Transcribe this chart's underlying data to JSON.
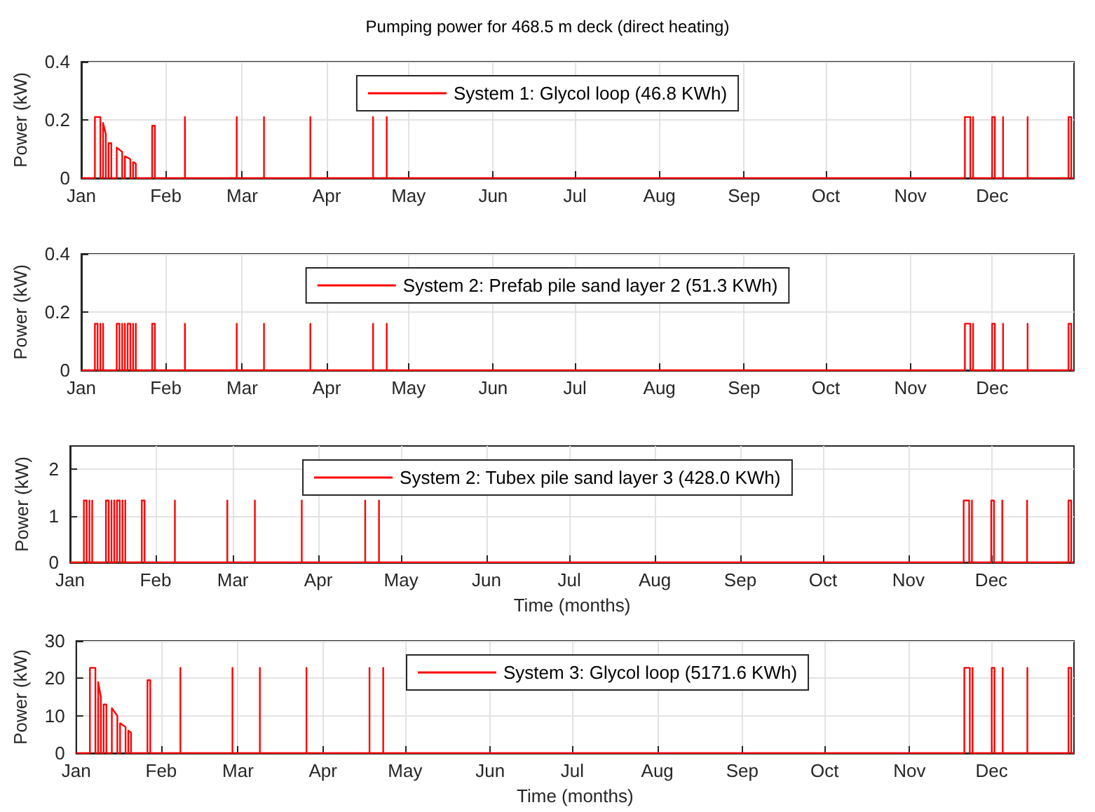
{
  "chart_data": [
    {
      "type": "line",
      "title": "Pumping power for 468.5 m deck (direct heating)",
      "ylabel": "Power (kW)",
      "legend": "top",
      "grid": true,
      "xlim": [
        "--01-01",
        "--12-31"
      ],
      "xticks": [
        {
          "value": "--01-01",
          "label": "Jan"
        },
        {
          "value": "--02-01",
          "label": "Feb"
        },
        {
          "value": "--03-01",
          "label": "Mar"
        },
        {
          "value": "--04-01",
          "label": "Apr"
        },
        {
          "value": "--05-01",
          "label": "May"
        },
        {
          "value": "--06-01",
          "label": "Jun"
        },
        {
          "value": "--07-01",
          "label": "Jul"
        },
        {
          "value": "--08-01",
          "label": "Aug"
        },
        {
          "value": "--09-01",
          "label": "Sep"
        },
        {
          "value": "--10-01",
          "label": "Oct"
        },
        {
          "value": "--11-01",
          "label": "Nov"
        },
        {
          "value": "--12-01",
          "label": "Dec"
        }
      ],
      "ylim": [
        0,
        0.4
      ],
      "yticks": [
        0,
        0.2,
        0.4
      ],
      "series": [
        {
          "name": "System 1: Glycol loop (46.8 KWh)",
          "color": "#ff0000",
          "x": [
            "--01-01",
            "--01-06",
            "--01-06",
            "--01-08",
            "--01-08",
            "--01-09",
            "--01-09",
            "--01-10",
            "--01-10",
            "--01-11",
            "--01-11",
            "--01-12",
            "--01-12",
            "--01-14",
            "--01-14",
            "--01-16",
            "--01-16",
            "--01-17",
            "--01-17",
            "--01-19",
            "--01-19",
            "--01-20",
            "--01-20",
            "--01-21",
            "--01-21",
            "--01-27",
            "--01-27",
            "--01-28",
            "--01-28",
            "--02-08",
            "--02-08",
            "--02-08",
            "--02-27",
            "--02-27",
            "--02-27",
            "--03-09",
            "--03-09",
            "--03-09",
            "--03-26",
            "--03-26",
            "--03-26",
            "--04-18",
            "--04-18",
            "--04-18",
            "--04-23",
            "--04-23",
            "--04-23",
            "--11-21",
            "--11-21",
            "--11-23",
            "--11-23",
            "--11-24",
            "--11-24",
            "--11-24",
            "--12-01",
            "--12-01",
            "--12-02",
            "--12-02",
            "--12-05",
            "--12-05",
            "--12-05",
            "--12-14",
            "--12-14",
            "--12-14",
            "--12-29",
            "--12-29",
            "--12-30",
            "--12-30",
            "--12-31"
          ],
          "values": [
            0,
            0,
            0.21,
            0.21,
            0,
            0,
            0.19,
            0.15,
            0,
            0,
            0.12,
            0.12,
            0,
            0,
            0.105,
            0.09,
            0,
            0,
            0.075,
            0.065,
            0,
            0,
            0.055,
            0.05,
            0,
            0,
            0.18,
            0.18,
            0,
            0,
            0.21,
            0,
            0,
            0.21,
            0,
            0,
            0.21,
            0,
            0,
            0.21,
            0,
            0,
            0.21,
            0,
            0,
            0.21,
            0,
            0,
            0.21,
            0.21,
            0,
            0,
            0.21,
            0,
            0,
            0.21,
            0.21,
            0,
            0,
            0.21,
            0,
            0,
            0.21,
            0,
            0,
            0.21,
            0.21,
            0,
            0
          ]
        }
      ]
    },
    {
      "type": "line",
      "ylabel": "Power (kW)",
      "legend": "top",
      "grid": true,
      "xlim": [
        "--01-01",
        "--12-31"
      ],
      "xticks": [
        {
          "value": "--01-01",
          "label": "Jan"
        },
        {
          "value": "--02-01",
          "label": "Feb"
        },
        {
          "value": "--03-01",
          "label": "Mar"
        },
        {
          "value": "--04-01",
          "label": "Apr"
        },
        {
          "value": "--05-01",
          "label": "May"
        },
        {
          "value": "--06-01",
          "label": "Jun"
        },
        {
          "value": "--07-01",
          "label": "Jul"
        },
        {
          "value": "--08-01",
          "label": "Aug"
        },
        {
          "value": "--09-01",
          "label": "Sep"
        },
        {
          "value": "--10-01",
          "label": "Oct"
        },
        {
          "value": "--11-01",
          "label": "Nov"
        },
        {
          "value": "--12-01",
          "label": "Dec"
        }
      ],
      "ylim": [
        0,
        0.4
      ],
      "yticks": [
        0,
        0.2,
        0.4
      ],
      "series": [
        {
          "name": "System 2: Prefab pile sand layer 2 (51.3 KWh)",
          "color": "#ff0000",
          "x": [
            "--01-01",
            "--01-06",
            "--01-06",
            "--01-07",
            "--01-07",
            "--01-08",
            "--01-08",
            "--01-08",
            "--01-09",
            "--01-09",
            "--01-09",
            "--01-14",
            "--01-14",
            "--01-15",
            "--01-15",
            "--01-16",
            "--01-16",
            "--01-16",
            "--01-17",
            "--01-17",
            "--01-17",
            "--01-18",
            "--01-18",
            "--01-19",
            "--01-19",
            "--01-20",
            "--01-20",
            "--01-20",
            "--01-21",
            "--01-21",
            "--01-21",
            "--01-27",
            "--01-27",
            "--01-28",
            "--01-28",
            "--02-08",
            "--02-08",
            "--02-08",
            "--02-27",
            "--02-27",
            "--02-27",
            "--03-09",
            "--03-09",
            "--03-09",
            "--03-26",
            "--03-26",
            "--03-26",
            "--04-18",
            "--04-18",
            "--04-18",
            "--04-23",
            "--04-23",
            "--04-23",
            "--11-21",
            "--11-21",
            "--11-23",
            "--11-23",
            "--11-24",
            "--11-24",
            "--11-24",
            "--12-01",
            "--12-01",
            "--12-02",
            "--12-02",
            "--12-05",
            "--12-05",
            "--12-05",
            "--12-14",
            "--12-14",
            "--12-14",
            "--12-29",
            "--12-29",
            "--12-30",
            "--12-30",
            "--12-31"
          ],
          "values": [
            0,
            0,
            0.16,
            0.16,
            0,
            0,
            0.16,
            0,
            0,
            0.16,
            0,
            0,
            0.16,
            0.16,
            0,
            0,
            0.16,
            0,
            0,
            0.16,
            0,
            0,
            0.16,
            0.16,
            0,
            0,
            0.16,
            0,
            0,
            0.16,
            0,
            0,
            0.16,
            0.16,
            0,
            0,
            0.16,
            0,
            0,
            0.16,
            0,
            0,
            0.16,
            0,
            0,
            0.16,
            0,
            0,
            0.16,
            0,
            0,
            0.16,
            0,
            0,
            0.16,
            0.16,
            0,
            0,
            0.16,
            0,
            0,
            0.16,
            0.16,
            0,
            0,
            0.16,
            0,
            0,
            0.16,
            0,
            0,
            0.16,
            0.16,
            0,
            0
          ]
        }
      ]
    },
    {
      "type": "line",
      "ylabel": "Power (kW)",
      "xlabel": "Time (months)",
      "legend": "top",
      "grid": true,
      "xlim": [
        "--01-01",
        "--12-31"
      ],
      "xticks": [
        {
          "value": "--01-01",
          "label": "Jan"
        },
        {
          "value": "--02-01",
          "label": "Feb"
        },
        {
          "value": "--03-01",
          "label": "Mar"
        },
        {
          "value": "--04-01",
          "label": "Apr"
        },
        {
          "value": "--05-01",
          "label": "May"
        },
        {
          "value": "--06-01",
          "label": "Jun"
        },
        {
          "value": "--07-01",
          "label": "Jul"
        },
        {
          "value": "--08-01",
          "label": "Aug"
        },
        {
          "value": "--09-01",
          "label": "Sep"
        },
        {
          "value": "--10-01",
          "label": "Oct"
        },
        {
          "value": "--11-01",
          "label": "Nov"
        },
        {
          "value": "--12-01",
          "label": "Dec"
        }
      ],
      "ylim": [
        0,
        2.5
      ],
      "yticks": [
        0,
        1,
        2
      ],
      "series": [
        {
          "name": "System 2: Tubex pile sand layer 3 (428.0 KWh)",
          "color": "#ff0000",
          "x": [
            "--01-01",
            "--01-06",
            "--01-06",
            "--01-07",
            "--01-07",
            "--01-08",
            "--01-08",
            "--01-08",
            "--01-09",
            "--01-09",
            "--01-09",
            "--01-14",
            "--01-14",
            "--01-15",
            "--01-15",
            "--01-16",
            "--01-16",
            "--01-16",
            "--01-17",
            "--01-17",
            "--01-17",
            "--01-18",
            "--01-18",
            "--01-19",
            "--01-19",
            "--01-20",
            "--01-20",
            "--01-20",
            "--01-21",
            "--01-21",
            "--01-21",
            "--01-27",
            "--01-27",
            "--01-28",
            "--01-28",
            "--02-08",
            "--02-08",
            "--02-08",
            "--02-27",
            "--02-27",
            "--02-27",
            "--03-09",
            "--03-09",
            "--03-09",
            "--03-26",
            "--03-26",
            "--03-26",
            "--04-18",
            "--04-18",
            "--04-18",
            "--04-23",
            "--04-23",
            "--04-23",
            "--11-21",
            "--11-21",
            "--11-23",
            "--11-23",
            "--11-24",
            "--11-24",
            "--11-24",
            "--12-01",
            "--12-01",
            "--12-02",
            "--12-02",
            "--12-05",
            "--12-05",
            "--12-05",
            "--12-14",
            "--12-14",
            "--12-14",
            "--12-29",
            "--12-29",
            "--12-30",
            "--12-30",
            "--12-31"
          ],
          "values": [
            0,
            0,
            1.33,
            1.33,
            0,
            0,
            1.33,
            0,
            0,
            1.33,
            0,
            0,
            1.33,
            1.33,
            0,
            0,
            1.33,
            0,
            0,
            1.33,
            0,
            0,
            1.33,
            1.33,
            0,
            0,
            1.33,
            0,
            0,
            1.33,
            0,
            0,
            1.33,
            1.33,
            0,
            0,
            1.33,
            0,
            0,
            1.33,
            0,
            0,
            1.33,
            0,
            0,
            1.33,
            0,
            0,
            1.33,
            0,
            0,
            1.33,
            0,
            0,
            1.33,
            1.33,
            0,
            0,
            1.33,
            0,
            0,
            1.33,
            1.33,
            0,
            0,
            1.33,
            0,
            0,
            1.33,
            0,
            0,
            1.33,
            1.33,
            0,
            0
          ]
        }
      ]
    },
    {
      "type": "line",
      "ylabel": "Power (kW)",
      "xlabel": "Time (months)",
      "legend": "top",
      "grid": true,
      "xlim": [
        "--01-01",
        "--12-31"
      ],
      "xticks": [
        {
          "value": "--01-01",
          "label": "Jan"
        },
        {
          "value": "--02-01",
          "label": "Feb"
        },
        {
          "value": "--03-01",
          "label": "Mar"
        },
        {
          "value": "--04-01",
          "label": "Apr"
        },
        {
          "value": "--05-01",
          "label": "May"
        },
        {
          "value": "--06-01",
          "label": "Jun"
        },
        {
          "value": "--07-01",
          "label": "Jul"
        },
        {
          "value": "--08-01",
          "label": "Aug"
        },
        {
          "value": "--09-01",
          "label": "Sep"
        },
        {
          "value": "--10-01",
          "label": "Oct"
        },
        {
          "value": "--11-01",
          "label": "Nov"
        },
        {
          "value": "--12-01",
          "label": "Dec"
        }
      ],
      "ylim": [
        0,
        30
      ],
      "yticks": [
        0,
        10,
        20,
        30
      ],
      "series": [
        {
          "name": "System 3: Glycol loop (5171.6 KWh)",
          "color": "#ff0000",
          "x": [
            "--01-01",
            "--01-06",
            "--01-06",
            "--01-08",
            "--01-08",
            "--01-09",
            "--01-09",
            "--01-10",
            "--01-10",
            "--01-11",
            "--01-11",
            "--01-12",
            "--01-12",
            "--01-14",
            "--01-14",
            "--01-16",
            "--01-16",
            "--01-17",
            "--01-17",
            "--01-19",
            "--01-19",
            "--01-20",
            "--01-20",
            "--01-21",
            "--01-21",
            "--01-27",
            "--01-27",
            "--01-28",
            "--01-28",
            "--02-08",
            "--02-08",
            "--02-08",
            "--02-27",
            "--02-27",
            "--02-27",
            "--03-09",
            "--03-09",
            "--03-09",
            "--03-26",
            "--03-26",
            "--03-26",
            "--04-18",
            "--04-18",
            "--04-18",
            "--04-23",
            "--04-23",
            "--04-23",
            "--11-21",
            "--11-21",
            "--11-23",
            "--11-23",
            "--11-24",
            "--11-24",
            "--11-24",
            "--12-01",
            "--12-01",
            "--12-02",
            "--12-02",
            "--12-05",
            "--12-05",
            "--12-05",
            "--12-14",
            "--12-14",
            "--12-14",
            "--12-29",
            "--12-29",
            "--12-30",
            "--12-30",
            "--12-31"
          ],
          "values": [
            0,
            0,
            22.8,
            22.8,
            0,
            0,
            19,
            15,
            0,
            0,
            13,
            13,
            0,
            0,
            12,
            10,
            0,
            0,
            8,
            7,
            0,
            0,
            6,
            5.5,
            0,
            0,
            19.5,
            19.5,
            0,
            0,
            22.8,
            0,
            0,
            22.8,
            0,
            0,
            22.8,
            0,
            0,
            22.8,
            0,
            0,
            22.8,
            0,
            0,
            22.8,
            0,
            0,
            22.8,
            22.8,
            0,
            0,
            22.8,
            0,
            0,
            22.8,
            22.8,
            0,
            0,
            22.8,
            0,
            0,
            22.8,
            0,
            0,
            22.8,
            22.8,
            0,
            0
          ]
        }
      ]
    }
  ]
}
